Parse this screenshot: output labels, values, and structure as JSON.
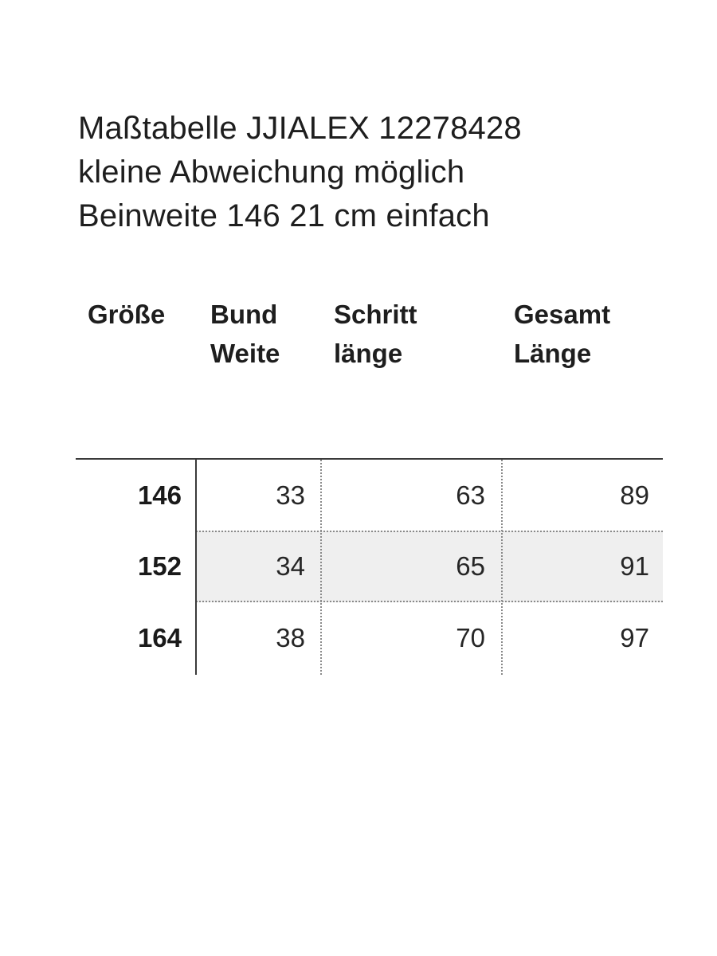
{
  "title": {
    "lines": [
      "Maßtabelle JJIALEX 12278428",
      "kleine Abweichung möglich",
      "Beinweite 146 21 cm einfach"
    ]
  },
  "table": {
    "headers": {
      "size": [
        "Größe"
      ],
      "waist": [
        "Bund",
        "Weite"
      ],
      "inseam": [
        "Schritt",
        "länge"
      ],
      "total": [
        "Gesamt",
        "Länge"
      ]
    },
    "rows": [
      {
        "size": "146",
        "waist": "33",
        "inseam": "63",
        "total": "89",
        "shaded": false
      },
      {
        "size": "152",
        "waist": "34",
        "inseam": "65",
        "total": "91",
        "shaded": true
      },
      {
        "size": "164",
        "waist": "38",
        "inseam": "70",
        "total": "97",
        "shaded": false
      }
    ],
    "colors": {
      "shade": "#efefef",
      "rule": "#3a3a3a",
      "dotted": "#8a8a8a"
    }
  }
}
